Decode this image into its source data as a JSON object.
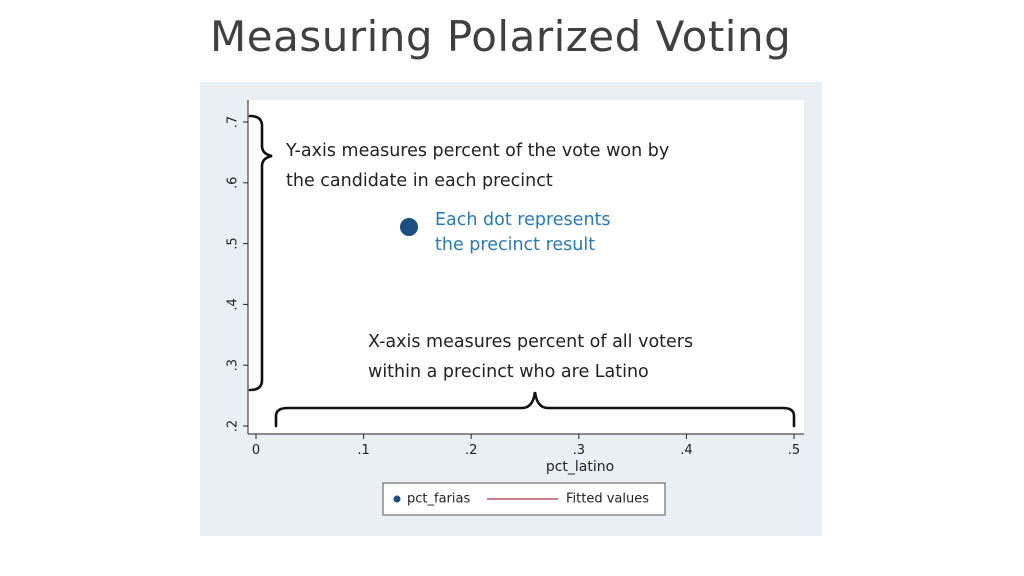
{
  "slide": {
    "title": "Measuring Polarized Voting"
  },
  "annotations": {
    "y_axis_note": [
      "Y-axis measures percent of the vote won by",
      "the candidate in each precinct"
    ],
    "dot_note": [
      "Each dot represents",
      "the precinct result"
    ],
    "x_axis_note": [
      "X-axis measures percent of all voters",
      "within a precinct who are Latino"
    ]
  },
  "colors": {
    "panel_background": "#e9eff4",
    "plot_background": "#ffffff",
    "marker": "#1a4f80",
    "fit_line": "#b03040",
    "dot_note_text": "#2a7ab7",
    "brace": "#111111"
  },
  "chart_data": {
    "type": "scatter",
    "title": "",
    "xlabel": "pct_latino",
    "ylabel": "",
    "xlim": [
      0,
      0.5
    ],
    "ylim": [
      0.2,
      0.7
    ],
    "xticks": [
      0,
      0.1,
      0.2,
      0.3,
      0.4,
      0.5
    ],
    "xtick_labels": [
      "0",
      ".1",
      ".2",
      ".3",
      ".4",
      ".5"
    ],
    "yticks": [
      0.2,
      0.3,
      0.4,
      0.5,
      0.6,
      0.7
    ],
    "ytick_labels": [
      ".2",
      ".3",
      ".4",
      ".5",
      ".6",
      ".7"
    ],
    "series": [
      {
        "name": "pct_farias",
        "kind": "scatter",
        "marker": "circle",
        "points": []
      },
      {
        "name": "Fitted values",
        "kind": "line",
        "points": []
      }
    ],
    "legend": {
      "position": "bottom-center",
      "entries": [
        "pct_farias",
        "Fitted values"
      ]
    },
    "grid": false
  }
}
